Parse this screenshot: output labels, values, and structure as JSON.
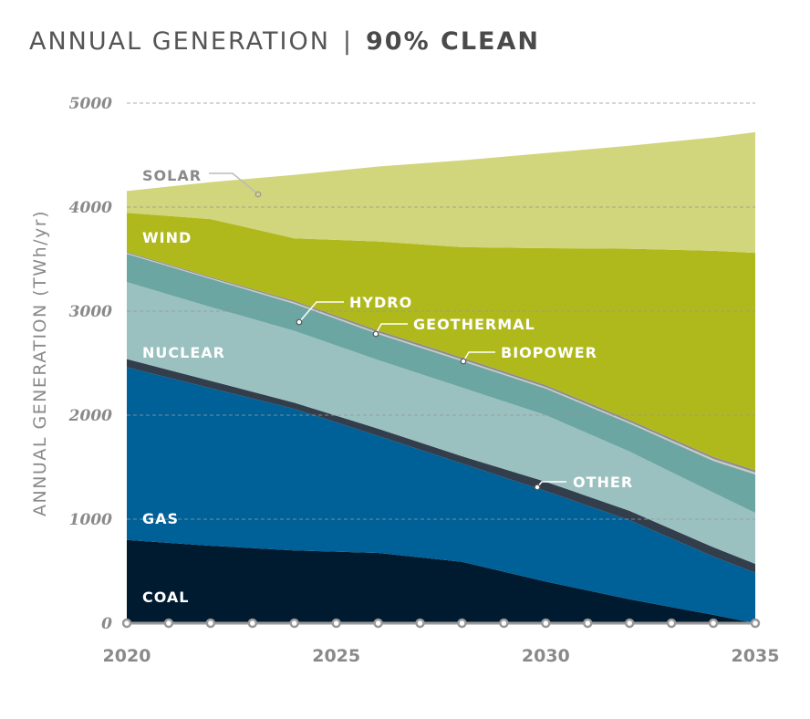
{
  "title": {
    "main": "ANNUAL GENERATION",
    "separator": "|",
    "scenario": "90% CLEAN"
  },
  "chart_data": {
    "type": "area",
    "stacked": true,
    "title": "ANNUAL GENERATION | 90% CLEAN",
    "xlabel": "",
    "ylabel": "ANNUAL GENERATION (TWh/yr)",
    "xlim": [
      2020,
      2035
    ],
    "ylim": [
      0,
      5000
    ],
    "x_ticks": [
      "2020",
      "2025",
      "2030",
      "2035"
    ],
    "y_ticks": [
      "0",
      "1000",
      "2000",
      "3000",
      "4000",
      "5000"
    ],
    "grid": "horizontal-dashed",
    "x": [
      2020,
      2022,
      2024,
      2026,
      2028,
      2030,
      2032,
      2034,
      2035
    ],
    "series": [
      {
        "name": "COAL",
        "color": "#001b30",
        "label_color": "#ffffff",
        "values": [
          800,
          745,
          700,
          675,
          590,
          400,
          230,
          80,
          0
        ]
      },
      {
        "name": "GAS",
        "color": "#006098",
        "label_color": "#ffffff",
        "values": [
          1660,
          1515,
          1360,
          1125,
          945,
          870,
          760,
          560,
          485
        ]
      },
      {
        "name": "OTHER",
        "color": "#333e4c",
        "label_color": "#ffffff",
        "values": [
          80,
          70,
          60,
          70,
          70,
          90,
          90,
          90,
          85
        ]
      },
      {
        "name": "NUCLEAR",
        "color": "#9ac1c0",
        "label_color": "#ffffff",
        "values": [
          740,
          710,
          690,
          660,
          660,
          640,
          570,
          525,
          490
        ]
      },
      {
        "name": "HYDRO",
        "color": "#6ba6a3",
        "label_color": "#ffffff",
        "values": [
          270,
          270,
          260,
          250,
          255,
          255,
          270,
          305,
          370
        ]
      },
      {
        "name": "GEOTHERMAL",
        "color": "#c8c8c8",
        "label_color": "#ffffff",
        "values": [
          10,
          10,
          15,
          15,
          15,
          15,
          15,
          20,
          20
        ]
      },
      {
        "name": "BIOPOWER",
        "color": "#8c8c8c",
        "label_color": "#ffffff",
        "values": [
          10,
          10,
          15,
          20,
          20,
          20,
          20,
          20,
          20
        ]
      },
      {
        "name": "WIND",
        "color": "#b0b91c",
        "label_color": "#ffffff",
        "values": [
          375,
          555,
          600,
          855,
          1060,
          1315,
          1645,
          1980,
          2090
        ]
      },
      {
        "name": "SOLAR",
        "color": "#d1d57b",
        "label_color": "#8a8a8a",
        "values": [
          210,
          355,
          610,
          720,
          835,
          915,
          990,
          1090,
          1160
        ]
      }
    ]
  }
}
